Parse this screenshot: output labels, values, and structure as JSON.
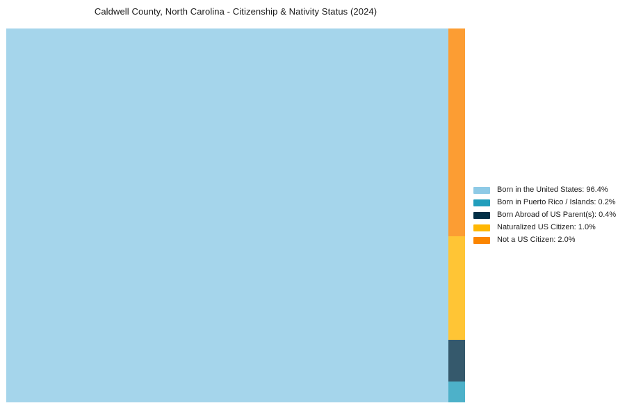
{
  "chart_data": {
    "type": "treemap",
    "title": "Caldwell County, North Carolina - Citizenship & Nativity Status (2024)",
    "legend_position": "right",
    "grid": false,
    "rect_opacity": 0.8,
    "series": [
      {
        "name": "Born in the United States",
        "value": 96.4,
        "label": "Born in the United States: 96.4%",
        "color": "#8ECAE6"
      },
      {
        "name": "Born in Puerto Rico / Islands",
        "value": 0.2,
        "label": "Born in Puerto Rico / Islands: 0.2%",
        "color": "#219EBC"
      },
      {
        "name": "Born Abroad of US Parent(s)",
        "value": 0.4,
        "label": "Born Abroad of US Parent(s): 0.4%",
        "color": "#023047"
      },
      {
        "name": "Naturalized US Citizen",
        "value": 1.0,
        "label": "Naturalized US Citizen: 1.0%",
        "color": "#FFB703"
      },
      {
        "name": "Not a US Citizen",
        "value": 2.0,
        "label": "Not a US Citizen: 2.0%",
        "color": "#FB8500"
      }
    ]
  }
}
